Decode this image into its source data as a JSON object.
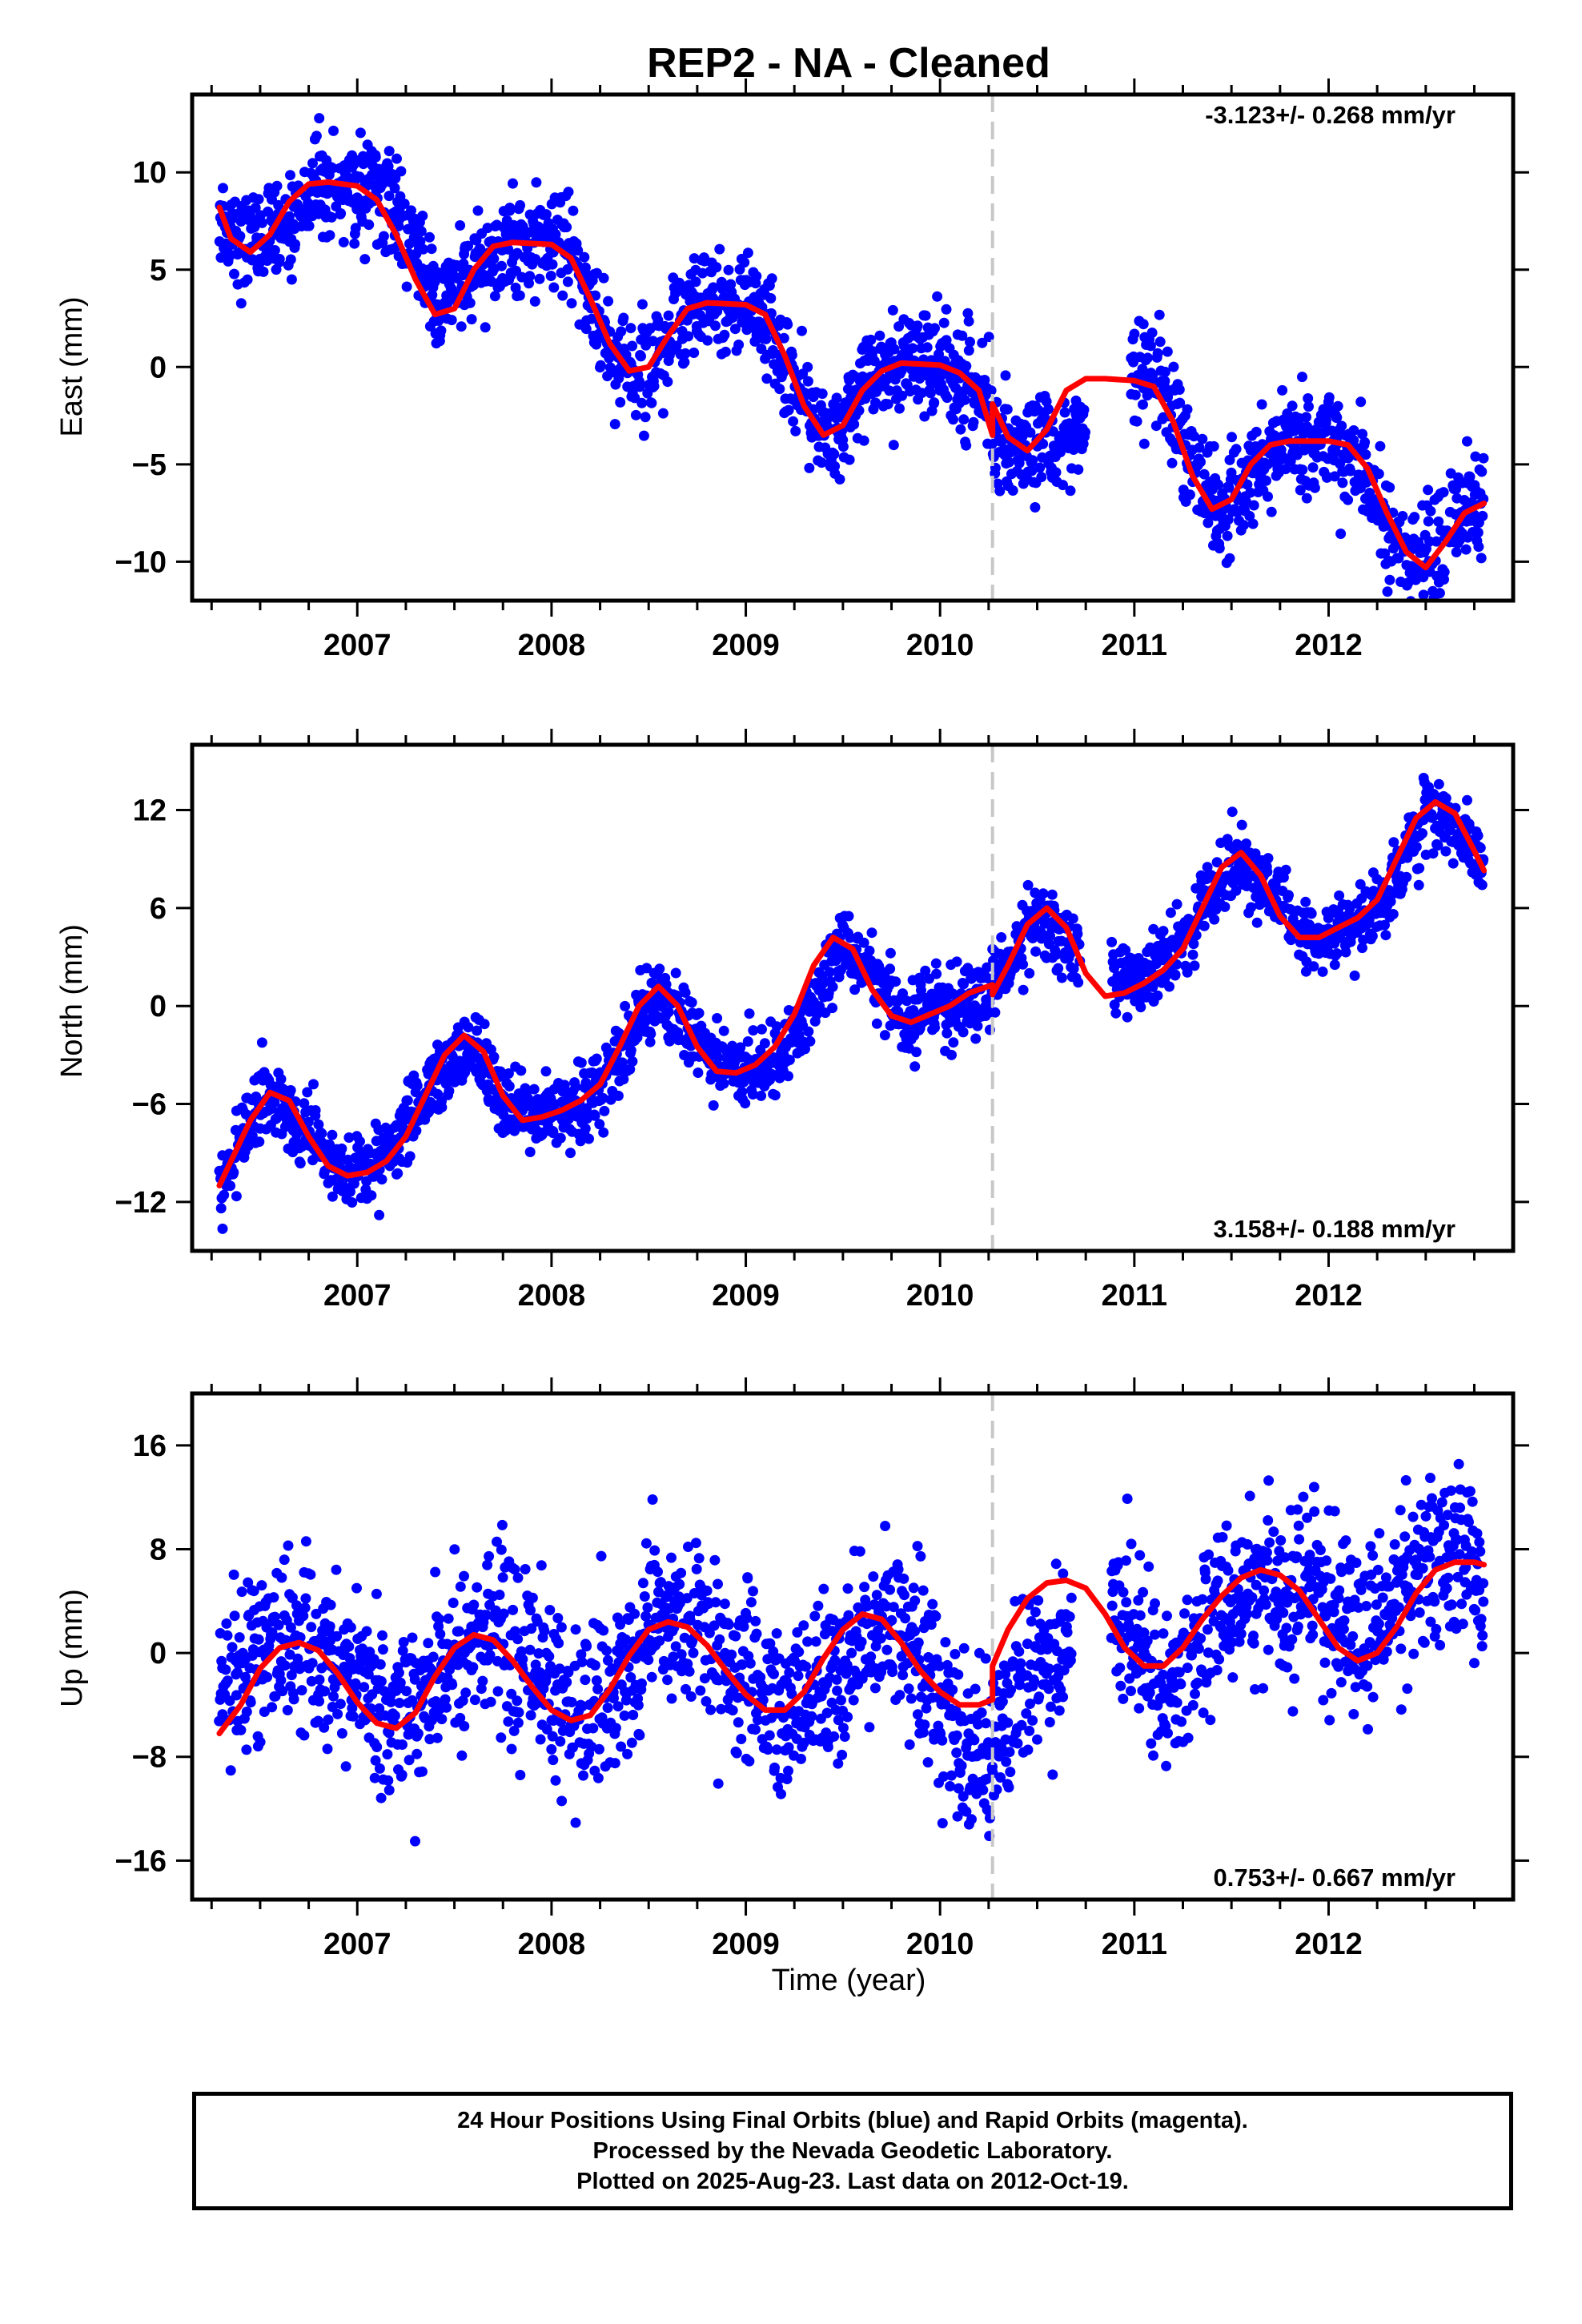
{
  "title": "REP2  - NA - Cleaned",
  "colors": {
    "final_orbits": "#0000ff",
    "model": "#ff0000",
    "break_line": "#c8c8c8",
    "frame": "#000000"
  },
  "chart_data": [
    {
      "type": "scatter",
      "component": "east",
      "ylabel": "East (mm)",
      "xlabel": "",
      "rate_text": "-3.123+/- 0.268 mm/yr",
      "rate_position": "top-right",
      "xlim": [
        2006.15,
        2012.95
      ],
      "ylim": [
        -12,
        14
      ],
      "x_ticks": [
        2007,
        2008,
        2009,
        2010,
        2011,
        2012
      ],
      "y_ticks": [
        -10,
        -5,
        0,
        5,
        10
      ],
      "y_tick_labels": [
        "−10",
        "−5",
        "0",
        "5",
        "10"
      ],
      "equipment_change": 2010.27,
      "data_gap": [
        2010.75,
        2010.98
      ],
      "series": [
        {
          "role": "daily-positions",
          "x": [
            2006.29,
            2006.42,
            2006.6,
            2006.78,
            2006.95,
            2007.1,
            2007.28,
            2007.42,
            2007.55,
            2007.75,
            2007.95,
            2008.1,
            2008.28,
            2008.4,
            2008.55,
            2008.75,
            2008.95,
            2009.1,
            2009.3,
            2009.45,
            2009.6,
            2009.8,
            2010.0,
            2010.15,
            2010.27,
            2010.35,
            2010.5,
            2010.65,
            2011.0,
            2011.12,
            2011.3,
            2011.45,
            2011.6,
            2011.8,
            2012.0,
            2012.15,
            2012.3,
            2012.45,
            2012.6,
            2012.75,
            2012.8
          ],
          "y": [
            7.8,
            6.2,
            6.5,
            9.3,
            9.6,
            9.1,
            7.2,
            2.8,
            4.2,
            6.3,
            6.4,
            5.8,
            1.5,
            -0.4,
            1.0,
            3.4,
            3.2,
            2.5,
            -1.8,
            -3.4,
            -1.0,
            0.0,
            0.1,
            -0.8,
            -2.5,
            -4.6,
            -4.0,
            -4.2,
            -0.5,
            -0.8,
            -5.0,
            -7.3,
            -5.0,
            -3.8,
            -3.7,
            -4.8,
            -8.0,
            -10.2,
            -8.5,
            -7.0,
            -7.1
          ],
          "spread": 1.3
        },
        {
          "role": "model-fit",
          "x": [
            2006.29,
            2006.35,
            2006.45,
            2006.55,
            2006.65,
            2006.75,
            2006.85,
            2007.0,
            2007.1,
            2007.2,
            2007.3,
            2007.4,
            2007.5,
            2007.6,
            2007.7,
            2007.8,
            2008.0,
            2008.1,
            2008.2,
            2008.3,
            2008.4,
            2008.5,
            2008.6,
            2008.7,
            2008.8,
            2009.0,
            2009.1,
            2009.2,
            2009.3,
            2009.4,
            2009.5,
            2009.6,
            2009.7,
            2009.8,
            2010.0,
            2010.1,
            2010.2,
            2010.27,
            2010.27,
            2010.35,
            2010.45,
            2010.55,
            2010.65,
            2010.75,
            2010.85,
            2011.0,
            2011.1,
            2011.2,
            2011.3,
            2011.4,
            2011.5,
            2011.6,
            2011.7,
            2011.8,
            2012.0,
            2012.1,
            2012.2,
            2012.3,
            2012.4,
            2012.5,
            2012.6,
            2012.7,
            2012.8
          ],
          "y": [
            8.2,
            6.6,
            5.9,
            6.8,
            8.5,
            9.4,
            9.5,
            9.3,
            8.6,
            6.8,
            4.5,
            2.7,
            3.0,
            5.0,
            6.2,
            6.4,
            6.3,
            5.6,
            3.5,
            1.2,
            -0.2,
            0.0,
            1.6,
            3.0,
            3.3,
            3.2,
            2.7,
            0.6,
            -2.0,
            -3.5,
            -3.0,
            -1.2,
            -0.2,
            0.2,
            0.1,
            -0.3,
            -1.2,
            -3.5,
            -1.9,
            -3.6,
            -4.3,
            -3.2,
            -1.2,
            -0.6,
            -0.6,
            -0.7,
            -1.0,
            -2.8,
            -5.6,
            -7.3,
            -6.8,
            -5.0,
            -4.0,
            -3.8,
            -3.8,
            -4.0,
            -5.2,
            -7.5,
            -9.5,
            -10.3,
            -9.0,
            -7.5,
            -7.0
          ]
        }
      ]
    },
    {
      "type": "scatter",
      "component": "north",
      "ylabel": "North (mm)",
      "xlabel": "",
      "rate_text": "3.158+/- 0.188 mm/yr",
      "rate_position": "bottom-right",
      "xlim": [
        2006.15,
        2012.95
      ],
      "ylim": [
        -15,
        16
      ],
      "x_ticks": [
        2007,
        2008,
        2009,
        2010,
        2011,
        2012
      ],
      "y_ticks": [
        -12,
        -6,
        0,
        6,
        12
      ],
      "y_tick_labels": [
        "−12",
        "−6",
        "0",
        "6",
        "12"
      ],
      "equipment_change": 2010.27,
      "data_gap": [
        2010.72,
        2010.88
      ],
      "series": [
        {
          "role": "daily-positions",
          "x": [
            2006.29,
            2006.4,
            2006.55,
            2006.7,
            2006.9,
            2007.05,
            2007.25,
            2007.45,
            2007.6,
            2007.8,
            2007.95,
            2008.15,
            2008.35,
            2008.55,
            2008.7,
            2008.9,
            2009.1,
            2009.3,
            2009.5,
            2009.65,
            2009.8,
            2010.0,
            2010.2,
            2010.35,
            2010.5,
            2010.65,
            2010.9,
            2011.1,
            2011.3,
            2011.5,
            2011.7,
            2011.9,
            2012.1,
            2012.3,
            2012.5,
            2012.65,
            2012.8
          ],
          "y": [
            -11.5,
            -8.0,
            -5.5,
            -7.5,
            -10.0,
            -9.8,
            -7.5,
            -3.5,
            -2.5,
            -6.0,
            -6.8,
            -6.2,
            -3.0,
            1.0,
            -1.5,
            -3.8,
            -3.5,
            -1.0,
            3.5,
            2.0,
            -0.5,
            -0.5,
            0.5,
            2.5,
            5.5,
            4.0,
            1.2,
            2.0,
            5.0,
            9.0,
            7.0,
            4.0,
            4.8,
            6.5,
            11.5,
            11.0,
            8.5
          ],
          "spread": 1.1
        },
        {
          "role": "model-fit",
          "x": [
            2006.29,
            2006.35,
            2006.45,
            2006.55,
            2006.65,
            2006.75,
            2006.85,
            2006.95,
            2007.05,
            2007.15,
            2007.25,
            2007.35,
            2007.45,
            2007.55,
            2007.65,
            2007.75,
            2007.85,
            2007.95,
            2008.05,
            2008.15,
            2008.25,
            2008.35,
            2008.45,
            2008.55,
            2008.65,
            2008.75,
            2008.85,
            2008.95,
            2009.05,
            2009.15,
            2009.25,
            2009.35,
            2009.45,
            2009.55,
            2009.65,
            2009.75,
            2009.85,
            2009.95,
            2010.05,
            2010.15,
            2010.27,
            2010.27,
            2010.35,
            2010.45,
            2010.55,
            2010.65,
            2010.75,
            2010.85,
            2010.95,
            2011.05,
            2011.15,
            2011.25,
            2011.35,
            2011.45,
            2011.55,
            2011.65,
            2011.75,
            2011.85,
            2011.95,
            2012.05,
            2012.15,
            2012.25,
            2012.35,
            2012.45,
            2012.55,
            2012.65,
            2012.75,
            2012.8
          ],
          "y": [
            -11.0,
            -9.5,
            -7.0,
            -5.3,
            -5.8,
            -8.0,
            -9.8,
            -10.4,
            -10.2,
            -9.5,
            -8.0,
            -5.5,
            -3.0,
            -1.8,
            -2.8,
            -5.5,
            -7.0,
            -6.8,
            -6.4,
            -5.8,
            -4.8,
            -2.5,
            0.0,
            1.2,
            0.0,
            -2.5,
            -4.0,
            -4.1,
            -3.6,
            -2.5,
            -0.5,
            2.5,
            4.2,
            3.5,
            1.0,
            -0.6,
            -1.0,
            -0.5,
            0.0,
            0.8,
            1.3,
            0.7,
            2.5,
            5.0,
            6.0,
            4.8,
            2.0,
            0.6,
            0.8,
            1.4,
            2.2,
            3.5,
            6.0,
            8.5,
            9.4,
            8.0,
            5.5,
            4.2,
            4.2,
            4.8,
            5.4,
            6.5,
            9.0,
            11.5,
            12.5,
            11.8,
            9.5,
            8.3
          ]
        }
      ]
    },
    {
      "type": "scatter",
      "component": "up",
      "ylabel": "Up (mm)",
      "xlabel": "Time (year)",
      "rate_text": "0.753+/- 0.667 mm/yr",
      "rate_position": "bottom-right",
      "xlim": [
        2006.15,
        2012.95
      ],
      "ylim": [
        -19,
        20
      ],
      "x_ticks": [
        2007,
        2008,
        2009,
        2010,
        2011,
        2012
      ],
      "y_ticks": [
        -16,
        -8,
        0,
        8,
        16
      ],
      "y_tick_labels": [
        "−16",
        "−8",
        "0",
        "8",
        "16"
      ],
      "equipment_change": 2010.27,
      "data_gap": [
        2010.68,
        2010.88
      ],
      "series": [
        {
          "role": "daily-positions",
          "x": [
            2006.29,
            2006.45,
            2006.65,
            2006.8,
            2007.0,
            2007.2,
            2007.35,
            2007.55,
            2007.75,
            2007.95,
            2008.15,
            2008.35,
            2008.55,
            2008.75,
            2008.95,
            2009.15,
            2009.35,
            2009.55,
            2009.75,
            2009.95,
            2010.1,
            2010.2,
            2010.35,
            2010.5,
            2010.65,
            2010.9,
            2011.05,
            2011.2,
            2011.4,
            2011.6,
            2011.8,
            2012.0,
            2012.2,
            2012.4,
            2012.55,
            2012.7,
            2012.8
          ],
          "y": [
            -5.0,
            -1.0,
            2.0,
            1.0,
            -2.0,
            -5.0,
            -3.0,
            1.0,
            2.0,
            -2.0,
            -5.0,
            -3.0,
            2.0,
            3.0,
            -1.0,
            -4.0,
            -3.0,
            1.0,
            2.0,
            -1.0,
            -6.0,
            -9.0,
            -4.0,
            -1.0,
            0.0,
            4.0,
            1.0,
            -3.0,
            2.0,
            5.0,
            5.0,
            3.0,
            2.0,
            5.0,
            8.0,
            7.0,
            4.0
          ],
          "spread": 3.2
        },
        {
          "role": "model-fit",
          "x": [
            2006.29,
            2006.4,
            2006.5,
            2006.6,
            2006.7,
            2006.8,
            2006.9,
            2007.0,
            2007.1,
            2007.2,
            2007.3,
            2007.4,
            2007.5,
            2007.6,
            2007.7,
            2007.8,
            2007.9,
            2008.0,
            2008.1,
            2008.2,
            2008.3,
            2008.4,
            2008.5,
            2008.6,
            2008.7,
            2008.8,
            2008.9,
            2009.0,
            2009.1,
            2009.2,
            2009.3,
            2009.4,
            2009.5,
            2009.6,
            2009.7,
            2009.8,
            2009.9,
            2010.0,
            2010.1,
            2010.2,
            2010.27,
            2010.27,
            2010.35,
            2010.45,
            2010.55,
            2010.65,
            2010.75,
            2010.85,
            2010.95,
            2011.05,
            2011.15,
            2011.25,
            2011.35,
            2011.45,
            2011.55,
            2011.65,
            2011.75,
            2011.85,
            2011.95,
            2012.05,
            2012.15,
            2012.25,
            2012.35,
            2012.45,
            2012.55,
            2012.65,
            2012.75,
            2012.8
          ],
          "y": [
            -6.2,
            -4.0,
            -1.2,
            0.4,
            0.8,
            0.2,
            -1.6,
            -3.8,
            -5.4,
            -5.8,
            -4.6,
            -1.8,
            0.4,
            1.4,
            1.0,
            -0.6,
            -2.6,
            -4.4,
            -5.2,
            -4.8,
            -2.8,
            -0.2,
            1.8,
            2.4,
            2.0,
            0.6,
            -1.4,
            -3.2,
            -4.4,
            -4.4,
            -3.0,
            -0.4,
            1.8,
            3.0,
            2.6,
            0.8,
            -1.4,
            -3.0,
            -4.0,
            -4.0,
            -3.6,
            -1.0,
            1.8,
            4.2,
            5.4,
            5.6,
            5.0,
            3.0,
            0.4,
            -1.0,
            -1.0,
            0.4,
            2.6,
            4.4,
            5.8,
            6.4,
            6.0,
            4.8,
            2.6,
            0.4,
            -0.6,
            0.0,
            2.0,
            4.6,
            6.4,
            7.0,
            7.0,
            6.8
          ]
        }
      ]
    }
  ],
  "footer": {
    "line1": "24 Hour Positions Using Final Orbits (blue) and Rapid Orbits (magenta).",
    "line2": "Processed by the Nevada Geodetic Laboratory.",
    "line3": "Plotted on 2025-Aug-23. Last data on 2012-Oct-19."
  }
}
